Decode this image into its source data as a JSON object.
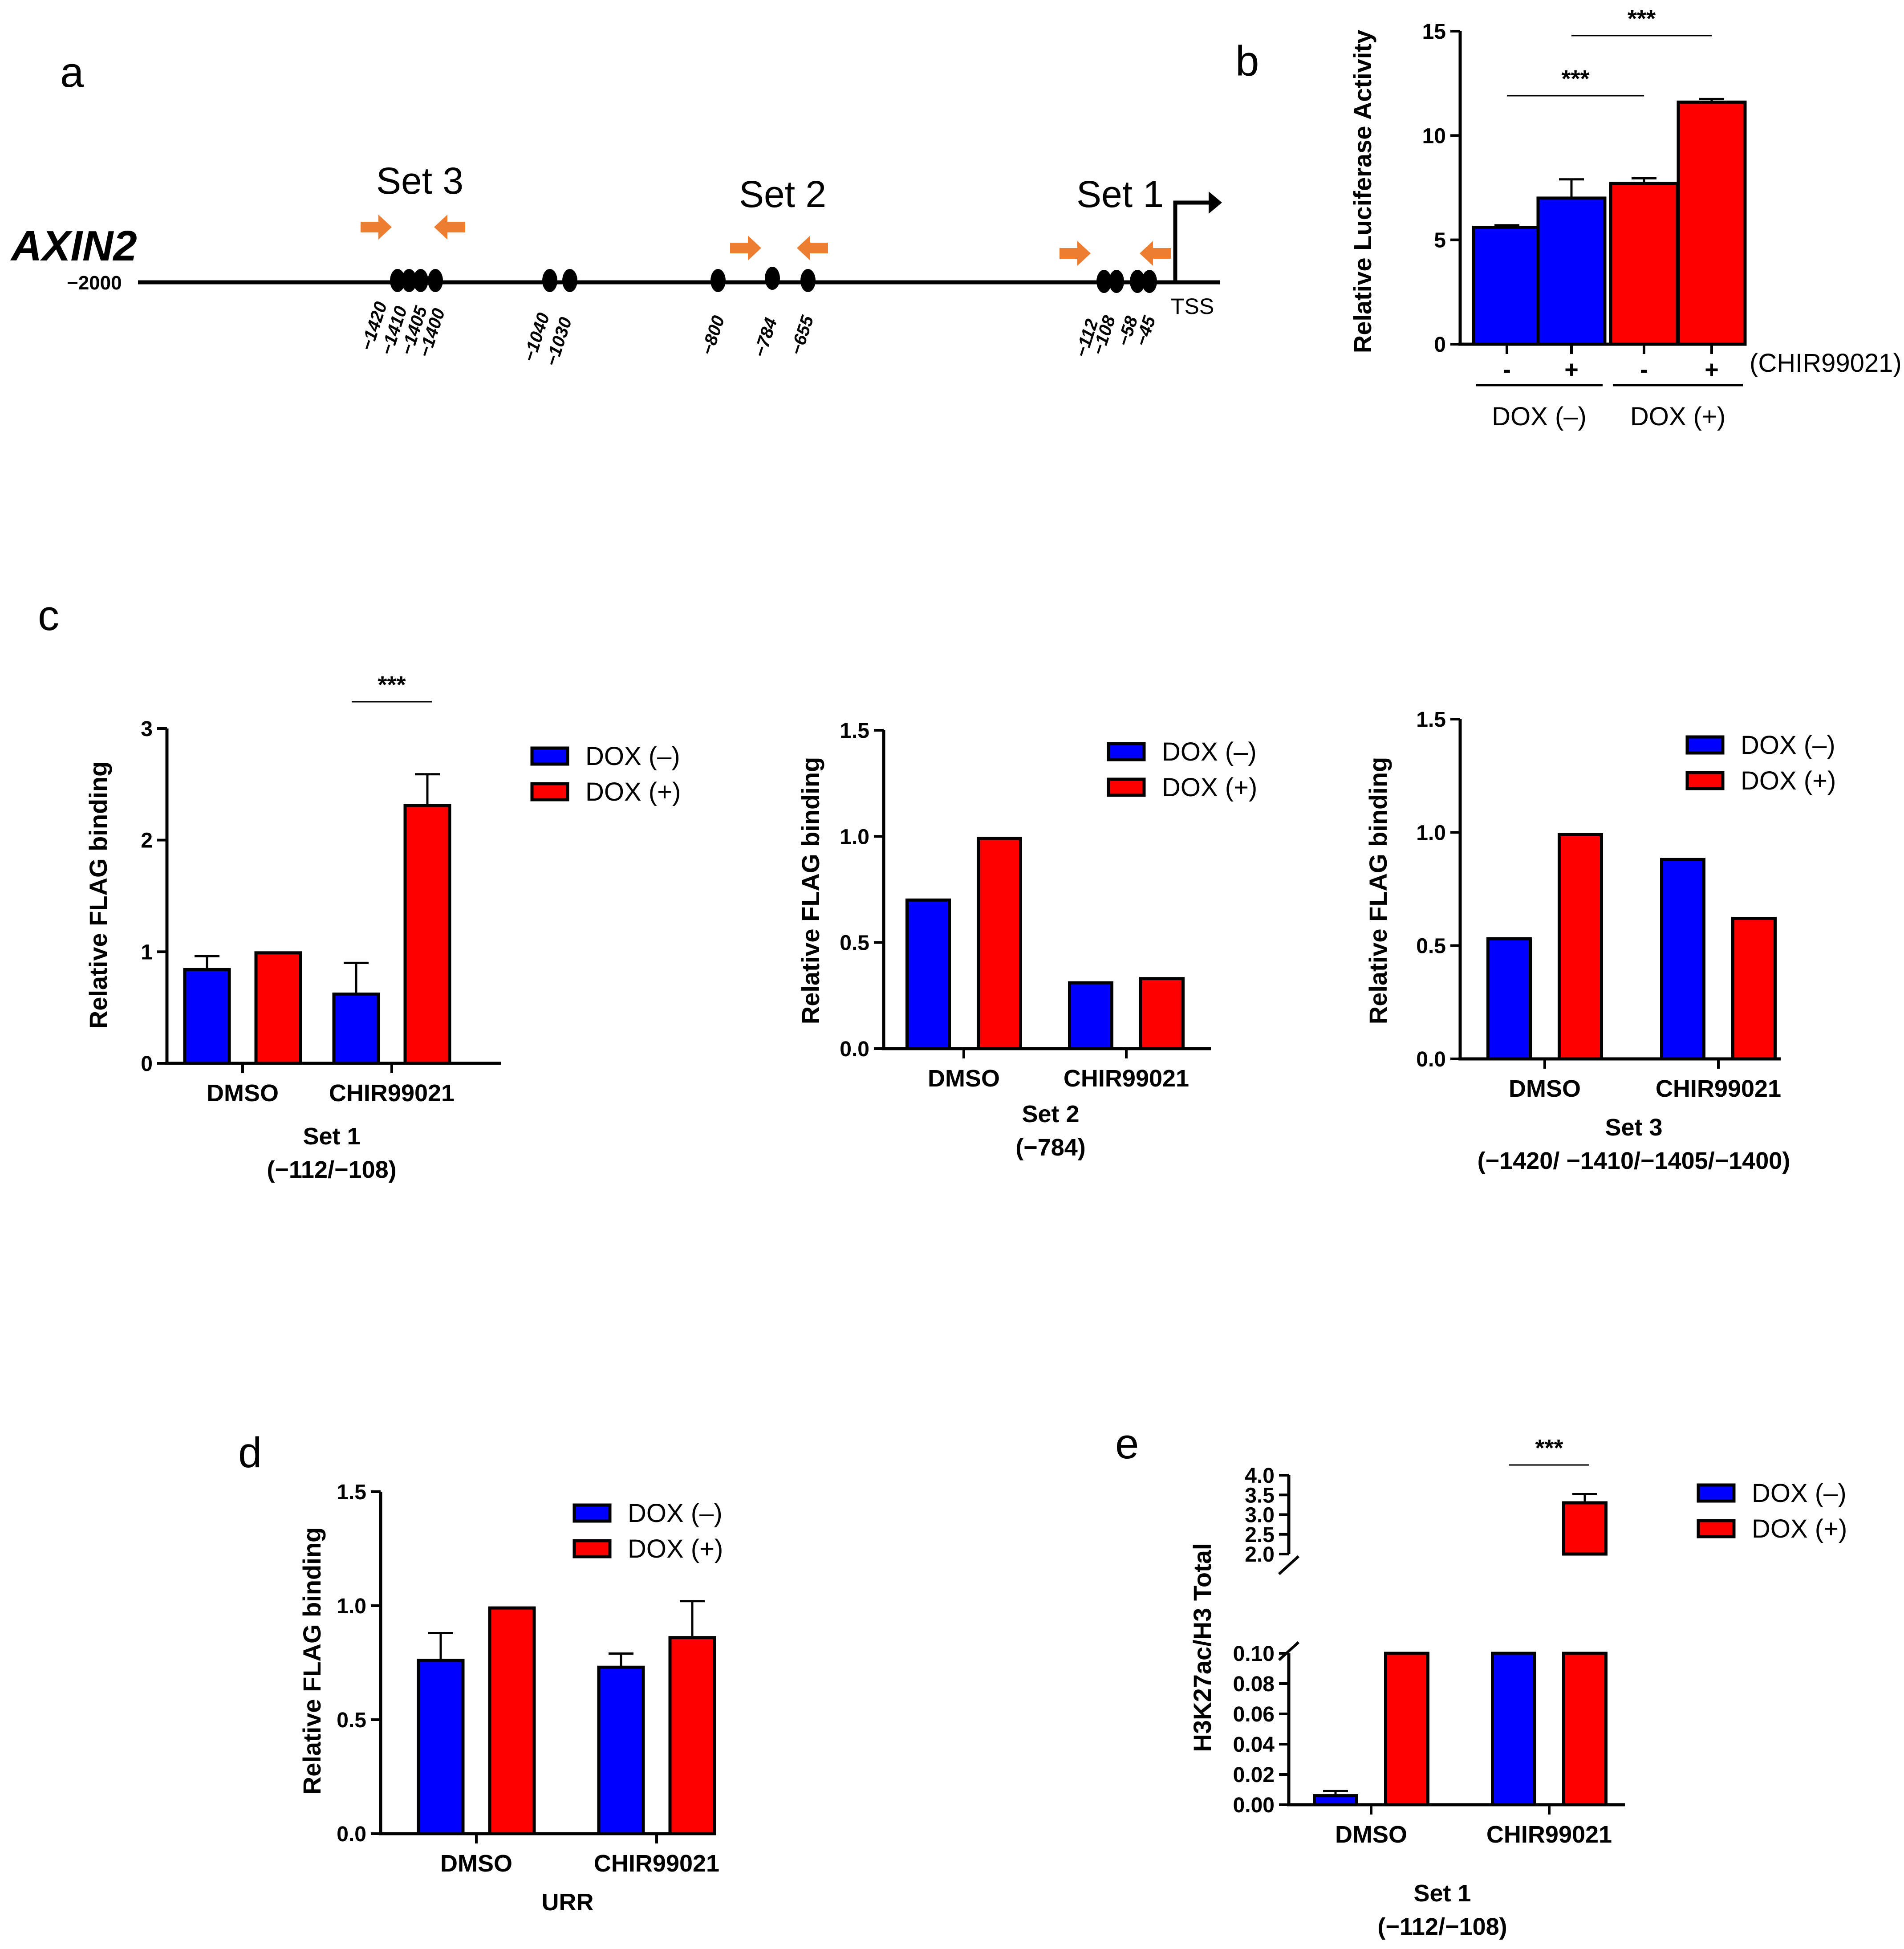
{
  "colors": {
    "dox_minus": "#0000ff",
    "dox_plus": "#ff0000",
    "primer": "#ed7d31",
    "axis": "#000000"
  },
  "panel_a": {
    "letter": "a",
    "gene": "AXIN2",
    "start_label": "−2000",
    "tss_label": "TSS",
    "sets": [
      {
        "label": "Set 3",
        "sites": [
          "−1420",
          "−1410",
          "−1405",
          "−1400"
        ]
      },
      {
        "label": "Set 2",
        "sites": [
          "−800",
          "−784",
          "−655"
        ]
      },
      {
        "label": "Set 1",
        "sites": [
          "−112",
          "−108",
          "−58",
          "−45"
        ]
      }
    ],
    "other_sites": [
      "−1040",
      "−1030"
    ]
  },
  "chart_data": [
    {
      "id": "b",
      "letter": "b",
      "type": "bar",
      "ylabel": "Relative Luciferase Activity",
      "ylim": [
        0,
        15
      ],
      "yticks": [
        "0",
        "5",
        "10",
        "15"
      ],
      "bars": [
        {
          "x_label": "-",
          "value": 5.6,
          "error": 0.1,
          "group": "dox_minus"
        },
        {
          "x_label": "+",
          "value": 7.0,
          "error": 0.9,
          "group": "dox_minus"
        },
        {
          "x_label": "-",
          "value": 7.7,
          "error": 0.25,
          "group": "dox_plus"
        },
        {
          "x_label": "+",
          "value": 11.6,
          "error": 0.15,
          "group": "dox_plus"
        }
      ],
      "treatment_label": "(CHIR99021)",
      "group_labels": [
        "DOX (–)",
        "DOX (+)"
      ],
      "significance": [
        {
          "label": "***",
          "from_bar": 0,
          "to_bar": 2
        },
        {
          "label": "***",
          "from_bar": 1,
          "to_bar": 3
        }
      ]
    },
    {
      "id": "c1",
      "letter": "c",
      "type": "bar",
      "ylabel": "Relative FLAG binding",
      "ylim": [
        0,
        3
      ],
      "yticks": [
        "0",
        "1",
        "2",
        "3"
      ],
      "categories": [
        "DMSO",
        "CHIR99021"
      ],
      "series": [
        {
          "name": "DOX (–)",
          "values": [
            0.84,
            0.62
          ],
          "errors": [
            0.12,
            0.28
          ]
        },
        {
          "name": "DOX (+)",
          "values": [
            0.99,
            2.31
          ],
          "errors": [
            0,
            0.28
          ]
        }
      ],
      "subtitle": [
        "Set 1",
        "(−112/−108)"
      ],
      "significance": [
        {
          "label": "***",
          "category": 1
        }
      ]
    },
    {
      "id": "c2",
      "type": "bar",
      "ylabel": "Relative FLAG binding",
      "ylim": [
        0,
        1.5
      ],
      "yticks": [
        "0.0",
        "0.5",
        "1.0",
        "1.5"
      ],
      "categories": [
        "DMSO",
        "CHIR99021"
      ],
      "series": [
        {
          "name": "DOX (–)",
          "values": [
            0.7,
            0.31
          ],
          "errors": [
            0,
            0
          ]
        },
        {
          "name": "DOX (+)",
          "values": [
            0.99,
            0.33
          ],
          "errors": [
            0,
            0
          ]
        }
      ],
      "subtitle": [
        "Set 2",
        "(−784)"
      ]
    },
    {
      "id": "c3",
      "type": "bar",
      "ylabel": "Relative FLAG binding",
      "ylim": [
        0,
        1.5
      ],
      "yticks": [
        "0.0",
        "0.5",
        "1.0",
        "1.5"
      ],
      "categories": [
        "DMSO",
        "CHIR99021"
      ],
      "series": [
        {
          "name": "DOX (–)",
          "values": [
            0.53,
            0.88
          ],
          "errors": [
            0,
            0
          ]
        },
        {
          "name": "DOX (+)",
          "values": [
            0.99,
            0.62
          ],
          "errors": [
            0,
            0
          ]
        }
      ],
      "subtitle": [
        "Set 3",
        "(−1420/ −1410/−1405/−1400)"
      ]
    },
    {
      "id": "d",
      "letter": "d",
      "type": "bar",
      "ylabel": "Relative FLAG binding",
      "ylim": [
        0,
        1.5
      ],
      "yticks": [
        "0.0",
        "0.5",
        "1.0",
        "1.5"
      ],
      "categories": [
        "DMSO",
        "CHIR99021"
      ],
      "series": [
        {
          "name": "DOX (–)",
          "values": [
            0.76,
            0.73
          ],
          "errors": [
            0.12,
            0.06
          ]
        },
        {
          "name": "DOX (+)",
          "values": [
            0.99,
            0.86
          ],
          "errors": [
            0,
            0.16
          ]
        }
      ],
      "subtitle": [
        "URR"
      ]
    },
    {
      "id": "e",
      "letter": "e",
      "type": "bar",
      "ylabel": "H3K27ac/H3 Total",
      "axis_break": true,
      "lower_ylim": [
        0,
        0.1
      ],
      "lower_yticks": [
        "0.00",
        "0.02",
        "0.04",
        "0.06",
        "0.08",
        "0.10"
      ],
      "upper_ylim": [
        2.0,
        4.0
      ],
      "upper_yticks": [
        "2.0",
        "2.5",
        "3.0",
        "3.5",
        "4.0"
      ],
      "categories": [
        "DMSO",
        "CHIR99021"
      ],
      "series": [
        {
          "name": "DOX (–)",
          "values": [
            0.006,
            0.1
          ],
          "errors": [
            0.003,
            0
          ]
        },
        {
          "name": "DOX (+)",
          "values": [
            0.1,
            3.3
          ],
          "errors": [
            0,
            0.22
          ]
        }
      ],
      "subtitle": [
        "Set 1",
        "(−112/−108)"
      ],
      "significance": [
        {
          "label": "***",
          "category": 1
        }
      ]
    }
  ]
}
